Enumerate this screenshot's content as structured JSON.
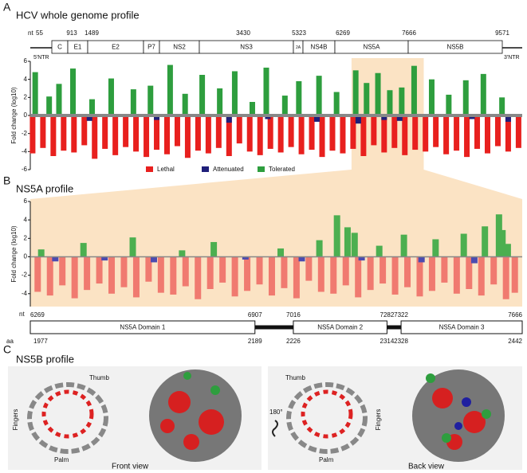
{
  "panel_labels": [
    "A",
    "B",
    "C"
  ],
  "genome_map": {
    "title": "HCV whole genome profile",
    "nt_prefix": "nt",
    "positions": [
      55,
      913,
      1489,
      3430,
      5323,
      6269,
      7666,
      9571
    ],
    "genes": [
      "C",
      "E1",
      "E2",
      "P7",
      "NS2",
      "NS3",
      "2A",
      "NS4B",
      "NS5A",
      "NS5B"
    ],
    "utr5": "5'NTR",
    "utr3": "3'NTR"
  },
  "chart_data": [
    {
      "type": "bar",
      "ylabel": "Fold change (log10)",
      "xlim": [
        55,
        9571
      ],
      "ylim": [
        -6,
        6
      ],
      "yticks": [
        6,
        4,
        2,
        0,
        -2,
        -4,
        -6
      ],
      "highlight": [
        6269,
        7666
      ],
      "series": [
        {
          "name": "Lethal",
          "color": "#e8201e",
          "x": [
            100,
            300,
            500,
            700,
            900,
            1100,
            1300,
            1500,
            1700,
            1900,
            2100,
            2300,
            2500,
            2700,
            2900,
            3100,
            3300,
            3500,
            3700,
            3900,
            4100,
            4300,
            4500,
            4700,
            4900,
            5100,
            5300,
            5500,
            5700,
            5900,
            6100,
            6300,
            6500,
            6700,
            6900,
            7100,
            7300,
            7500,
            7700,
            7900,
            8100,
            8300,
            8500,
            8700,
            8900,
            9100,
            9300,
            9500
          ],
          "values": [
            -4.2,
            -3.6,
            -4.5,
            -3.9,
            -4.1,
            -3.3,
            -4.8,
            -3.7,
            -4.4,
            -3.5,
            -4.0,
            -4.6,
            -3.8,
            -4.3,
            -3.4,
            -4.7,
            -3.9,
            -4.2,
            -3.6,
            -4.5,
            -3.1,
            -4.0,
            -4.4,
            -3.7,
            -4.1,
            -3.5,
            -4.3,
            -3.8,
            -4.6,
            -3.9,
            -4.2,
            -3.7,
            -4.5,
            -3.3,
            -4.1,
            -3.6,
            -4.4,
            -3.8,
            -4.0,
            -3.5,
            -4.3,
            -3.9,
            -4.6,
            -3.7,
            -4.2,
            -3.4,
            -4.0,
            -3.6
          ]
        },
        {
          "name": "Attenuated",
          "color": "#1f1f7a",
          "x": [
            1200,
            2500,
            3900,
            4650,
            5600,
            6400,
            6900,
            7200,
            8600,
            9300
          ],
          "values": [
            -0.6,
            -0.5,
            -0.8,
            -0.4,
            -0.7,
            -0.9,
            -0.5,
            -0.6,
            -0.4,
            -0.7
          ]
        },
        {
          "name": "Tolerated",
          "color": "#2e9e3e",
          "x": [
            150,
            420,
            610,
            880,
            1250,
            1620,
            2050,
            2380,
            2760,
            3050,
            3380,
            3720,
            4010,
            4350,
            4620,
            4980,
            5250,
            5640,
            5980,
            6350,
            6560,
            6780,
            7010,
            7240,
            7480,
            7820,
            8150,
            8480,
            8820,
            9180
          ],
          "values": [
            4.8,
            2.1,
            3.5,
            5.2,
            1.8,
            4.1,
            2.9,
            3.3,
            5.6,
            2.4,
            4.5,
            3.0,
            4.9,
            1.5,
            5.3,
            2.2,
            3.8,
            4.4,
            2.6,
            5.0,
            3.6,
            4.7,
            2.8,
            3.1,
            5.5,
            4.0,
            2.3,
            3.9,
            4.6,
            2.0
          ]
        }
      ]
    },
    {
      "type": "bar",
      "title": "NS5A profile",
      "ylabel": "Fold change (log10)",
      "xlim": [
        6269,
        7666
      ],
      "ylim": [
        -5.4,
        6
      ],
      "yticks": [
        6,
        4,
        2,
        0,
        -2,
        -4
      ],
      "series": [
        {
          "color": "#f07a70",
          "x": [
            6290,
            6325,
            6360,
            6395,
            6430,
            6465,
            6500,
            6535,
            6570,
            6605,
            6640,
            6675,
            6710,
            6745,
            6780,
            6815,
            6850,
            6885,
            6920,
            6955,
            6990,
            7025,
            7060,
            7095,
            7130,
            7165,
            7200,
            7235,
            7270,
            7305,
            7340,
            7375,
            7410,
            7445,
            7480,
            7515,
            7550,
            7585,
            7620,
            7645
          ],
          "values": [
            -3.8,
            -4.2,
            -3.1,
            -4.5,
            -3.6,
            -2.9,
            -4.0,
            -3.3,
            -4.4,
            -2.7,
            -3.9,
            -4.1,
            -3.2,
            -4.6,
            -3.5,
            -2.8,
            -4.3,
            -3.7,
            -3.0,
            -4.2,
            -3.4,
            -4.5,
            -2.6,
            -3.8,
            -4.0,
            -3.1,
            -4.4,
            -3.6,
            -2.9,
            -4.1,
            -3.3,
            -4.3,
            -3.7,
            -2.8,
            -4.0,
            -3.5,
            -4.2,
            -3.0,
            -4.6,
            -3.9
          ]
        },
        {
          "color": "#4b4bb0",
          "x": [
            6340,
            6480,
            6620,
            6880,
            7040,
            7210,
            7380,
            7530
          ],
          "values": [
            -0.5,
            -0.4,
            -0.6,
            -0.3,
            -0.5,
            -0.4,
            -0.6,
            -0.7
          ]
        },
        {
          "color": "#4caf50",
          "x": [
            6300,
            6420,
            6560,
            6700,
            6790,
            6980,
            7090,
            7140,
            7170,
            7190,
            7260,
            7330,
            7420,
            7500,
            7560,
            7600,
            7610,
            7625
          ],
          "values": [
            0.8,
            1.5,
            2.1,
            0.7,
            1.6,
            0.9,
            1.8,
            4.5,
            3.2,
            2.6,
            1.2,
            2.4,
            1.9,
            2.5,
            3.3,
            4.6,
            2.9,
            1.4
          ]
        }
      ]
    }
  ],
  "ns5a_map": {
    "nt_prefix": "nt",
    "aa_prefix": "aa",
    "domains": [
      {
        "name": "NS5A Domain 1",
        "nt": [
          6269,
          6907
        ],
        "aa": [
          1977,
          2189
        ]
      },
      {
        "name": "NS5A Domain 2",
        "nt": [
          7016,
          7282
        ],
        "aa": [
          2226,
          2314
        ]
      },
      {
        "name": "NS5A Domain 3",
        "nt": [
          7322,
          7666
        ],
        "aa": [
          2328,
          2442
        ]
      }
    ]
  },
  "ns5b": {
    "title": "NS5B profile",
    "front": {
      "thumb": "Thumb",
      "fingers": "Fingers",
      "palm": "Palm",
      "caption": "Front view"
    },
    "rotation": "180°",
    "back": {
      "thumb": "Thumb",
      "fingers": "Fingers",
      "palm": "Palm",
      "caption": "Back view"
    }
  }
}
